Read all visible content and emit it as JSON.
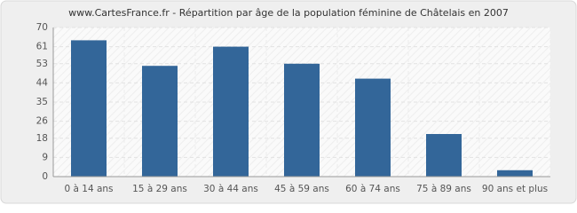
{
  "chart_data": {
    "type": "bar",
    "title": "www.CartesFrance.fr - Répartition par âge de la population féminine de Châtelais en 2007",
    "categories": [
      "0 à 14 ans",
      "15 à 29 ans",
      "30 à 44 ans",
      "45 à 59 ans",
      "60 à 74 ans",
      "75 à 89 ans",
      "90 ans et plus"
    ],
    "values": [
      64,
      52,
      61,
      53,
      46,
      20,
      3
    ],
    "color": "#336699",
    "ylim": [
      0,
      70
    ],
    "yticks": [
      0,
      9,
      18,
      26,
      35,
      44,
      53,
      61,
      70
    ],
    "grid": true
  }
}
